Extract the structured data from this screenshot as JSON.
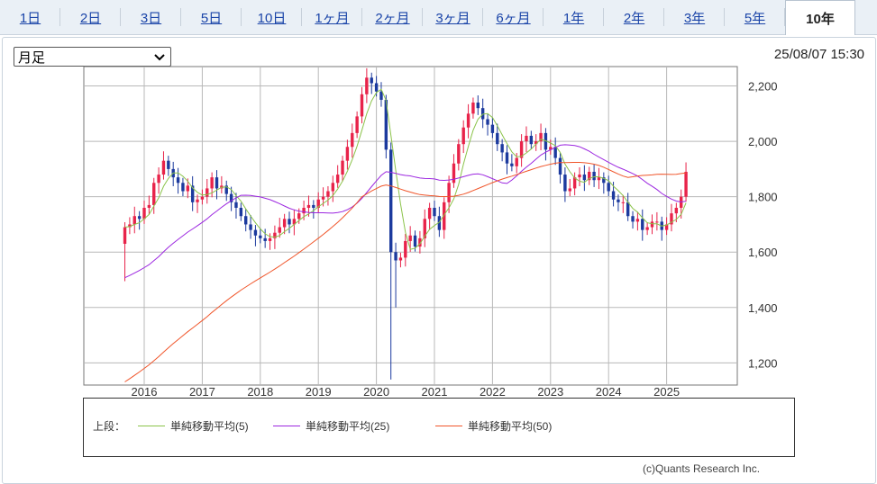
{
  "tabs": [
    {
      "label": "1日",
      "active": false
    },
    {
      "label": "2日",
      "active": false
    },
    {
      "label": "3日",
      "active": false
    },
    {
      "label": "5日",
      "active": false
    },
    {
      "label": "10日",
      "active": false
    },
    {
      "label": "1ヶ月",
      "active": false
    },
    {
      "label": "2ヶ月",
      "active": false
    },
    {
      "label": "3ヶ月",
      "active": false
    },
    {
      "label": "6ヶ月",
      "active": false
    },
    {
      "label": "1年",
      "active": false
    },
    {
      "label": "2年",
      "active": false
    },
    {
      "label": "3年",
      "active": false
    },
    {
      "label": "5年",
      "active": false
    },
    {
      "label": "10年",
      "active": true
    }
  ],
  "period_select": {
    "value": "月足"
  },
  "timestamp": "25/08/07 15:30",
  "legend": {
    "prefix": "上段：",
    "items": [
      {
        "label": "単純移動平均(5)",
        "color": "#8bc34a"
      },
      {
        "label": "単純移動平均(25)",
        "color": "#9c27e0"
      },
      {
        "label": "単純移動平均(50)",
        "color": "#f0552a"
      }
    ]
  },
  "copyright": "(c)Quants Research Inc.",
  "colors": {
    "up": "#e8234a",
    "down": "#1c3a9e",
    "grid": "#b8b8b8"
  },
  "chart_data": {
    "type": "candlestick",
    "x_tick_labels": [
      "2016",
      "2017",
      "2018",
      "2019",
      "2020",
      "2021",
      "2022",
      "2023",
      "2024",
      "2025"
    ],
    "y_tick_labels": [
      "2,200",
      "2,000",
      "1,800",
      "1,600",
      "1,400",
      "1,200"
    ],
    "ylim": [
      1120,
      2270
    ],
    "grid": true,
    "start": "2015-09",
    "close": [
      1690,
      1700,
      1730,
      1720,
      1760,
      1770,
      1850,
      1880,
      1930,
      1900,
      1870,
      1850,
      1820,
      1840,
      1780,
      1790,
      1800,
      1830,
      1870,
      1830,
      1840,
      1810,
      1780,
      1760,
      1730,
      1700,
      1680,
      1660,
      1650,
      1640,
      1650,
      1670,
      1690,
      1720,
      1700,
      1720,
      1740,
      1760,
      1770,
      1760,
      1790,
      1800,
      1820,
      1850,
      1880,
      1930,
      1980,
      2030,
      2090,
      2170,
      2230,
      2210,
      2180,
      2150,
      1970,
      1600,
      1570,
      1580,
      1640,
      1660,
      1620,
      1650,
      1720,
      1760,
      1730,
      1680,
      1780,
      1850,
      1920,
      1990,
      2050,
      2100,
      2140,
      2120,
      2080,
      2060,
      2030,
      1990,
      1960,
      1920,
      1910,
      1940,
      2000,
      2020,
      1990,
      2000,
      2030,
      1970,
      1980,
      1940,
      1880,
      1820,
      1830,
      1870,
      1880,
      1860,
      1890,
      1860,
      1870,
      1850,
      1820,
      1790,
      1780,
      1780,
      1730,
      1710,
      1720,
      1680,
      1690,
      1710,
      1710,
      1680,
      1700,
      1740,
      1760,
      1800,
      1890
    ]
  }
}
